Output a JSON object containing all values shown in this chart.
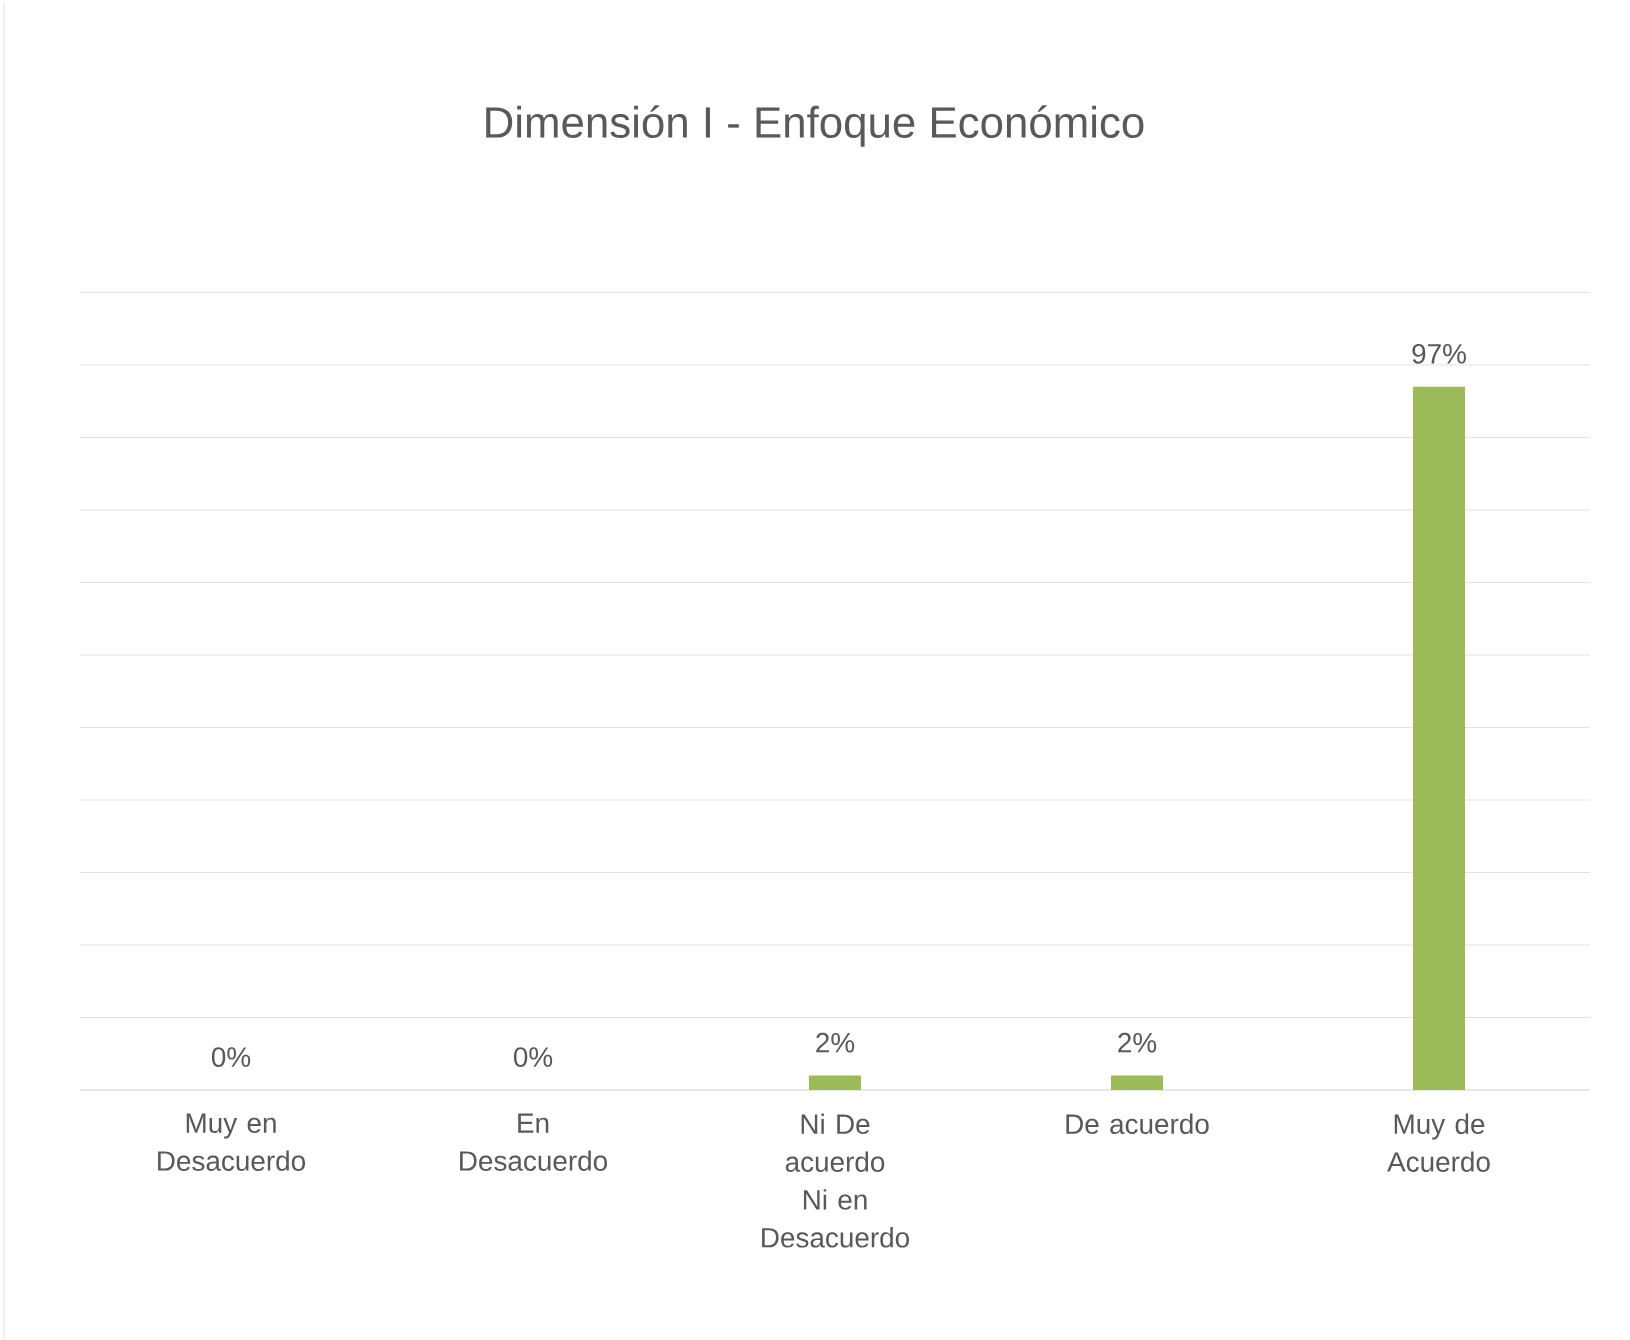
{
  "chart_data": {
    "type": "bar",
    "title": "Dimensión I - Enfoque Económico",
    "categories": [
      "Muy en Desacuerdo",
      "En Desacuerdo",
      "Ni De acuerdo Ni en Desacuerdo",
      "De acuerdo",
      "Muy de Acuerdo"
    ],
    "values": [
      0,
      0,
      2,
      2,
      97
    ],
    "value_labels": [
      "0%",
      "0%",
      "2%",
      "2%",
      "97%"
    ],
    "color": "#9bbb59",
    "tick_labels": "x",
    "grid": "y"
  }
}
